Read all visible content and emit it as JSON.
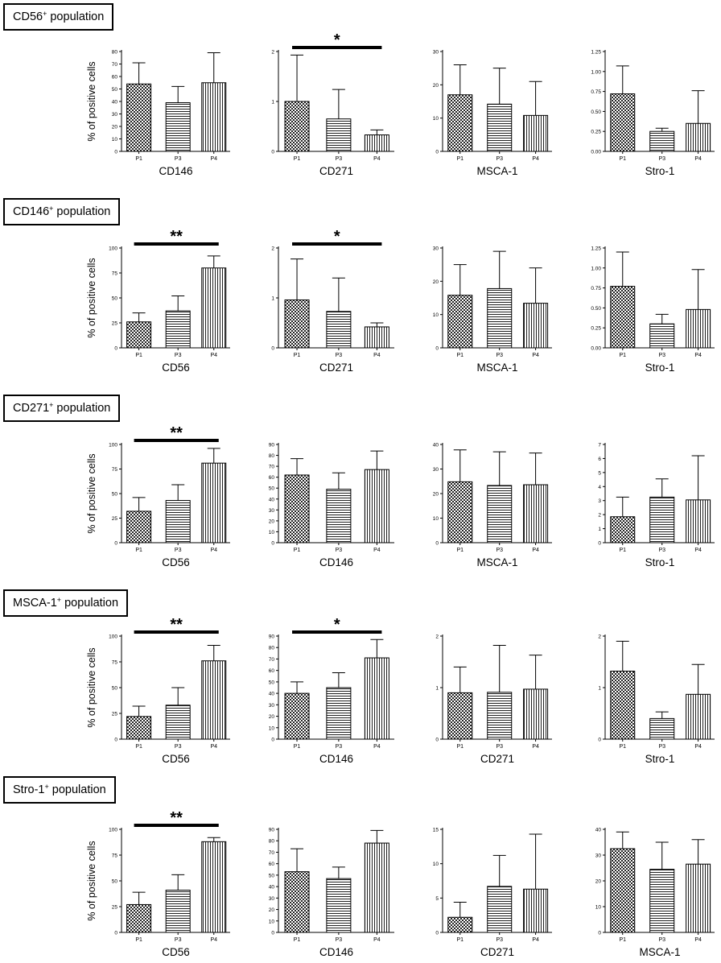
{
  "figure": {
    "y_axis_label": "% of positive cells",
    "passages": [
      "P1",
      "P3",
      "P4"
    ]
  },
  "colors": {
    "ink": "#000000",
    "bar_fill": "#ffffff"
  },
  "chart_data": [
    {
      "type": "bar",
      "group": "CD56+ population",
      "group_marker": "CD56",
      "group_marker_sup": "+",
      "group_suffix": " population",
      "title": "",
      "xlabel": "CD146",
      "ylabel": "% of positive cells",
      "categories": [
        "P1",
        "P3",
        "P4"
      ],
      "values": [
        54,
        39,
        55
      ],
      "errors": [
        71,
        52,
        79
      ],
      "patterns": [
        "checker",
        "hlines",
        "vlines"
      ],
      "ylim": [
        0,
        80
      ],
      "yticks": [
        "0",
        "10",
        "20",
        "30",
        "40",
        "50",
        "60",
        "70",
        "80"
      ],
      "significance": null,
      "legend": "none",
      "grid": false
    },
    {
      "type": "bar",
      "group": "CD56+ population",
      "xlabel": "CD271",
      "ylabel": "",
      "categories": [
        "P1",
        "P3",
        "P4"
      ],
      "values": [
        1.0,
        0.65,
        0.33
      ],
      "errors": [
        1.93,
        1.24,
        0.43
      ],
      "patterns": [
        "checker",
        "hlines",
        "vlines"
      ],
      "ylim": [
        0,
        2
      ],
      "yticks": [
        "0",
        "1",
        "2"
      ],
      "significance": {
        "from": "P1",
        "to": "P4",
        "label": "*"
      }
    },
    {
      "type": "bar",
      "group": "CD56+ population",
      "xlabel": "MSCA-1",
      "ylabel": "",
      "categories": [
        "P1",
        "P3",
        "P4"
      ],
      "values": [
        17,
        14.2,
        10.8
      ],
      "errors": [
        26,
        25,
        21
      ],
      "patterns": [
        "checker",
        "hlines",
        "vlines"
      ],
      "ylim": [
        0,
        30
      ],
      "yticks": [
        "0",
        "10",
        "20",
        "30"
      ],
      "significance": null
    },
    {
      "type": "bar",
      "group": "CD56+ population",
      "xlabel": "Stro-1",
      "ylabel": "",
      "categories": [
        "P1",
        "P3",
        "P4"
      ],
      "values": [
        0.72,
        0.25,
        0.35
      ],
      "errors": [
        1.07,
        0.29,
        0.76
      ],
      "patterns": [
        "checker",
        "hlines",
        "vlines"
      ],
      "ylim": [
        0,
        1.25
      ],
      "yticks": [
        "0.00",
        "0.25",
        "0.50",
        "0.75",
        "1.00",
        "1.25"
      ],
      "significance": null
    },
    {
      "type": "bar",
      "group": "CD146+ population",
      "group_marker": "CD146",
      "group_marker_sup": "+",
      "group_suffix": " population",
      "xlabel": "CD56",
      "ylabel": "% of positive cells",
      "categories": [
        "P1",
        "P3",
        "P4"
      ],
      "values": [
        26,
        37,
        80
      ],
      "errors": [
        35,
        52,
        92
      ],
      "patterns": [
        "checker",
        "hlines",
        "vlines"
      ],
      "ylim": [
        0,
        100
      ],
      "yticks": [
        "0",
        "25",
        "50",
        "75",
        "100"
      ],
      "significance": {
        "from": "P1",
        "to": "P4",
        "label": "**"
      }
    },
    {
      "type": "bar",
      "group": "CD146+ population",
      "xlabel": "CD271",
      "ylabel": "",
      "categories": [
        "P1",
        "P3",
        "P4"
      ],
      "values": [
        0.96,
        0.73,
        0.42
      ],
      "errors": [
        1.78,
        1.4,
        0.5
      ],
      "patterns": [
        "checker",
        "hlines",
        "vlines"
      ],
      "ylim": [
        0,
        2
      ],
      "yticks": [
        "0",
        "1",
        "2"
      ],
      "significance": {
        "from": "P1",
        "to": "P4",
        "label": "*"
      }
    },
    {
      "type": "bar",
      "group": "CD146+ population",
      "xlabel": "MSCA-1",
      "ylabel": "",
      "categories": [
        "P1",
        "P3",
        "P4"
      ],
      "values": [
        15.8,
        17.8,
        13.4
      ],
      "errors": [
        25,
        29,
        24
      ],
      "patterns": [
        "checker",
        "hlines",
        "vlines"
      ],
      "ylim": [
        0,
        30
      ],
      "yticks": [
        "0",
        "10",
        "20",
        "30"
      ],
      "significance": null
    },
    {
      "type": "bar",
      "group": "CD146+ population",
      "xlabel": "Stro-1",
      "ylabel": "",
      "categories": [
        "P1",
        "P3",
        "P4"
      ],
      "values": [
        0.77,
        0.3,
        0.48
      ],
      "errors": [
        1.2,
        0.42,
        0.98
      ],
      "patterns": [
        "checker",
        "hlines",
        "vlines"
      ],
      "ylim": [
        0,
        1.25
      ],
      "yticks": [
        "0.00",
        "0.25",
        "0.50",
        "0.75",
        "1.00",
        "1.25"
      ],
      "significance": null
    },
    {
      "type": "bar",
      "group": "CD271+ population",
      "group_marker": "CD271",
      "group_marker_sup": "+",
      "group_suffix": " population",
      "xlabel": "CD56",
      "ylabel": "% of positive cells",
      "categories": [
        "P1",
        "P3",
        "P4"
      ],
      "values": [
        32,
        43,
        81
      ],
      "errors": [
        46,
        59,
        96
      ],
      "patterns": [
        "checker",
        "hlines",
        "vlines"
      ],
      "ylim": [
        0,
        100
      ],
      "yticks": [
        "0",
        "25",
        "50",
        "75",
        "100"
      ],
      "significance": {
        "from": "P1",
        "to": "P4",
        "label": "**"
      }
    },
    {
      "type": "bar",
      "group": "CD271+ population",
      "xlabel": "CD146",
      "ylabel": "",
      "categories": [
        "P1",
        "P3",
        "P4"
      ],
      "values": [
        62,
        49,
        67
      ],
      "errors": [
        77,
        64,
        84
      ],
      "patterns": [
        "checker",
        "hlines",
        "vlines"
      ],
      "ylim": [
        0,
        90
      ],
      "yticks": [
        "0",
        "10",
        "20",
        "30",
        "40",
        "50",
        "60",
        "70",
        "80",
        "90"
      ],
      "significance": null
    },
    {
      "type": "bar",
      "group": "CD271+ population",
      "xlabel": "MSCA-1",
      "ylabel": "",
      "categories": [
        "P1",
        "P3",
        "P4"
      ],
      "values": [
        24.8,
        23.3,
        23.6
      ],
      "errors": [
        37.8,
        37,
        36.5
      ],
      "patterns": [
        "checker",
        "hlines",
        "vlines"
      ],
      "ylim": [
        0,
        40
      ],
      "yticks": [
        "0",
        "10",
        "20",
        "30",
        "40"
      ],
      "significance": null
    },
    {
      "type": "bar",
      "group": "CD271+ population",
      "xlabel": "Stro-1",
      "ylabel": "",
      "categories": [
        "P1",
        "P3",
        "P4"
      ],
      "values": [
        1.85,
        3.25,
        3.05
      ],
      "errors": [
        3.25,
        4.55,
        6.2
      ],
      "patterns": [
        "checker",
        "hlines",
        "vlines"
      ],
      "ylim": [
        0,
        7
      ],
      "yticks": [
        "0",
        "1",
        "2",
        "3",
        "4",
        "5",
        "6",
        "7"
      ],
      "significance": null
    },
    {
      "type": "bar",
      "group": "MSCA-1+ population",
      "group_marker": "MSCA-1",
      "group_marker_sup": "+",
      "group_suffix": " population",
      "xlabel": "CD56",
      "ylabel": "% of positive cells",
      "categories": [
        "P1",
        "P3",
        "P4"
      ],
      "values": [
        22,
        33,
        76
      ],
      "errors": [
        32,
        50,
        91
      ],
      "patterns": [
        "checker",
        "hlines",
        "vlines"
      ],
      "ylim": [
        0,
        100
      ],
      "yticks": [
        "0",
        "25",
        "50",
        "75",
        "100"
      ],
      "significance": {
        "from": "P1",
        "to": "P4",
        "label": "**"
      }
    },
    {
      "type": "bar",
      "group": "MSCA-1+ population",
      "xlabel": "CD146",
      "ylabel": "",
      "categories": [
        "P1",
        "P3",
        "P4"
      ],
      "values": [
        40,
        45,
        71
      ],
      "errors": [
        50,
        58,
        87
      ],
      "patterns": [
        "checker",
        "hlines",
        "vlines"
      ],
      "ylim": [
        0,
        90
      ],
      "yticks": [
        "0",
        "10",
        "20",
        "30",
        "40",
        "50",
        "60",
        "70",
        "80",
        "90"
      ],
      "significance": {
        "from": "P1",
        "to": "P4",
        "label": "*"
      }
    },
    {
      "type": "bar",
      "group": "MSCA-1+ population",
      "xlabel": "CD271",
      "ylabel": "",
      "categories": [
        "P1",
        "P3",
        "P4"
      ],
      "values": [
        0.9,
        0.91,
        0.97
      ],
      "errors": [
        1.4,
        1.82,
        1.63
      ],
      "patterns": [
        "checker",
        "hlines",
        "vlines"
      ],
      "ylim": [
        0,
        2
      ],
      "yticks": [
        "0",
        "1",
        "2"
      ],
      "significance": null
    },
    {
      "type": "bar",
      "group": "MSCA-1+ population",
      "xlabel": "Stro-1",
      "ylabel": "",
      "categories": [
        "P1",
        "P3",
        "P4"
      ],
      "values": [
        1.32,
        0.4,
        0.87
      ],
      "errors": [
        1.9,
        0.53,
        1.45
      ],
      "patterns": [
        "checker",
        "hlines",
        "vlines"
      ],
      "ylim": [
        0,
        2
      ],
      "yticks": [
        "0",
        "1",
        "2"
      ],
      "significance": null
    },
    {
      "type": "bar",
      "group": "Stro-1+ population",
      "group_marker": "Stro-1",
      "group_marker_sup": "+",
      "group_suffix": " population",
      "xlabel": "CD56",
      "ylabel": "% of positive cells",
      "categories": [
        "P1",
        "P3",
        "P4"
      ],
      "values": [
        27,
        41,
        88
      ],
      "errors": [
        39,
        56,
        92
      ],
      "patterns": [
        "checker",
        "hlines",
        "vlines"
      ],
      "ylim": [
        0,
        100
      ],
      "yticks": [
        "0",
        "25",
        "50",
        "75",
        "100"
      ],
      "significance": {
        "from": "P1",
        "to": "P4",
        "label": "**"
      }
    },
    {
      "type": "bar",
      "group": "Stro-1+ population",
      "xlabel": "CD146",
      "ylabel": "",
      "categories": [
        "P1",
        "P3",
        "P4"
      ],
      "values": [
        53,
        47,
        78
      ],
      "errors": [
        73,
        57,
        89
      ],
      "patterns": [
        "checker",
        "hlines",
        "vlines"
      ],
      "ylim": [
        0,
        90
      ],
      "yticks": [
        "0",
        "10",
        "20",
        "30",
        "40",
        "50",
        "60",
        "70",
        "80",
        "90"
      ],
      "significance": null
    },
    {
      "type": "bar",
      "group": "Stro-1+ population",
      "xlabel": "CD271",
      "ylabel": "",
      "categories": [
        "P1",
        "P3",
        "P4"
      ],
      "values": [
        2.2,
        6.7,
        6.3
      ],
      "errors": [
        4.4,
        11.2,
        14.3
      ],
      "patterns": [
        "checker",
        "hlines",
        "vlines"
      ],
      "ylim": [
        0,
        15
      ],
      "yticks": [
        "0",
        "5",
        "10",
        "15"
      ],
      "significance": null
    },
    {
      "type": "bar",
      "group": "Stro-1+ population",
      "xlabel": "MSCA-1",
      "ylabel": "",
      "categories": [
        "P1",
        "P3",
        "P4"
      ],
      "values": [
        32.5,
        24.5,
        26.5
      ],
      "errors": [
        39,
        35,
        36
      ],
      "patterns": [
        "checker",
        "hlines",
        "vlines"
      ],
      "ylim": [
        0,
        40
      ],
      "yticks": [
        "0",
        "10",
        "20",
        "30",
        "40"
      ],
      "significance": null
    }
  ]
}
